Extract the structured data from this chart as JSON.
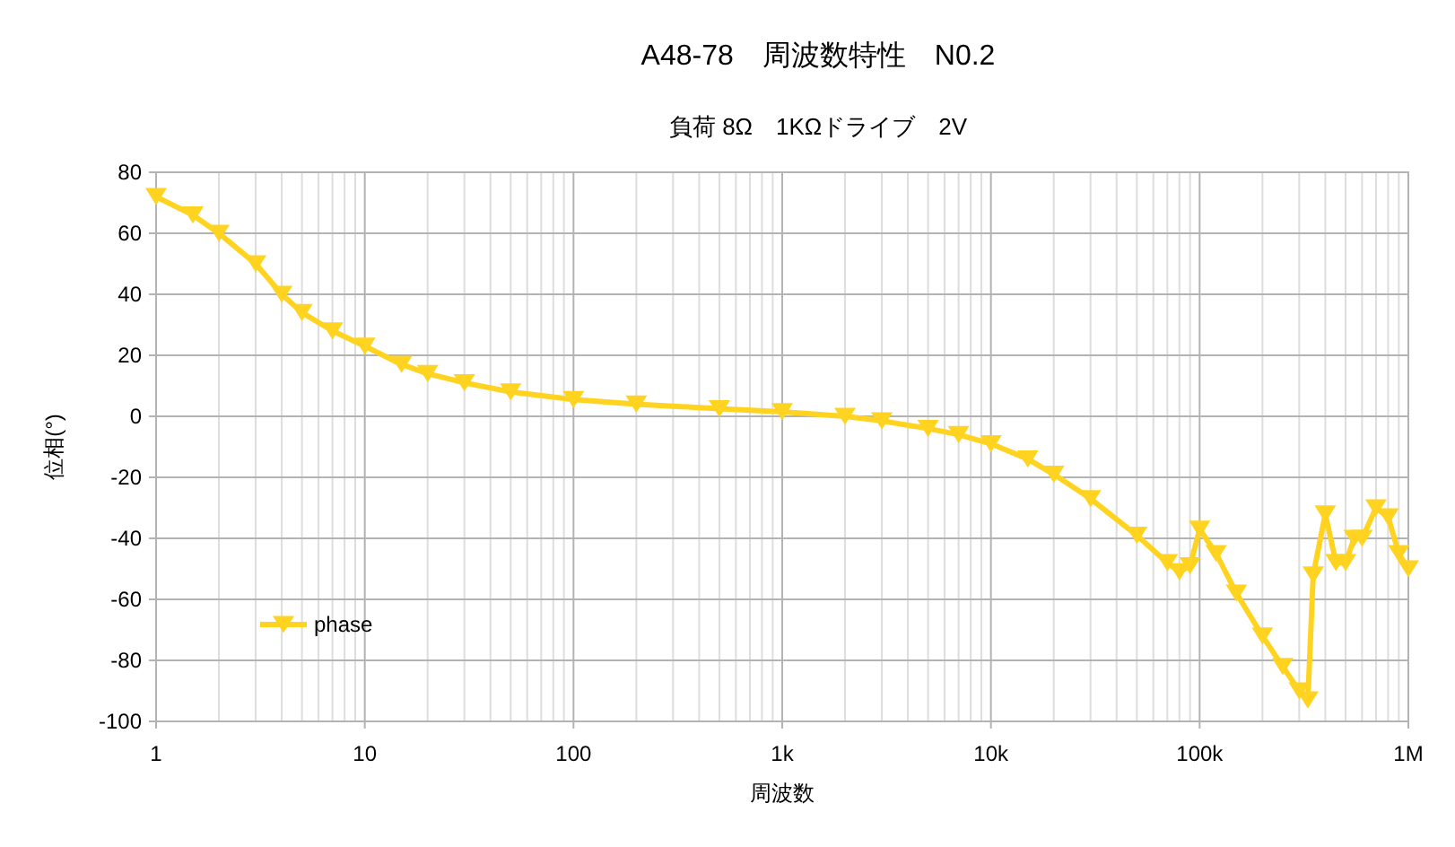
{
  "chart_data": {
    "type": "line",
    "title": "A48-78　周波数特性　N0.2",
    "subtitle": "負荷 8Ω　1KΩドライブ　2V",
    "xlabel": "周波数",
    "ylabel": "位相(°)",
    "log": "x",
    "grid": true,
    "legend": "bottom left",
    "marker": "triangle",
    "line_style": "solid",
    "xlim": [
      1,
      1000000
    ],
    "ylim": [
      -100,
      80
    ],
    "xticks": [
      1,
      10,
      100,
      {
        "value": 1000,
        "label": "1k"
      },
      {
        "value": 10000,
        "label": "10k"
      },
      {
        "value": 100000,
        "label": "100k"
      },
      {
        "value": 1000000,
        "label": "1M"
      }
    ],
    "yticks": [
      -100,
      -80,
      -60,
      -40,
      -20,
      0,
      20,
      40,
      60,
      80
    ],
    "series": [
      {
        "name": "phase",
        "color": "#ffd320",
        "x": [
          1,
          1.5,
          2,
          3,
          4,
          5,
          7,
          10,
          15,
          20,
          30,
          50,
          100,
          200,
          500,
          1000,
          2000,
          3000,
          5000,
          7000,
          10000,
          15000,
          20000,
          30000,
          50000,
          70000,
          80000,
          90000,
          100000,
          120000,
          150000,
          200000,
          250000,
          300000,
          330000,
          350000,
          400000,
          450000,
          500000,
          550000,
          600000,
          700000,
          800000,
          900000,
          1000000
        ],
        "values": [
          72,
          66,
          60,
          50,
          40,
          34,
          28,
          23,
          17,
          14,
          11,
          8,
          5.5,
          4,
          2.5,
          1.5,
          0,
          -1.5,
          -4,
          -6,
          -9,
          -14,
          -19,
          -27,
          -39,
          -48,
          -51,
          -49,
          -37,
          -45,
          -58,
          -72,
          -82,
          -90,
          -93,
          -52,
          -32,
          -48,
          -48,
          -40,
          -40,
          -30,
          -33,
          -45,
          -50
        ]
      }
    ]
  }
}
